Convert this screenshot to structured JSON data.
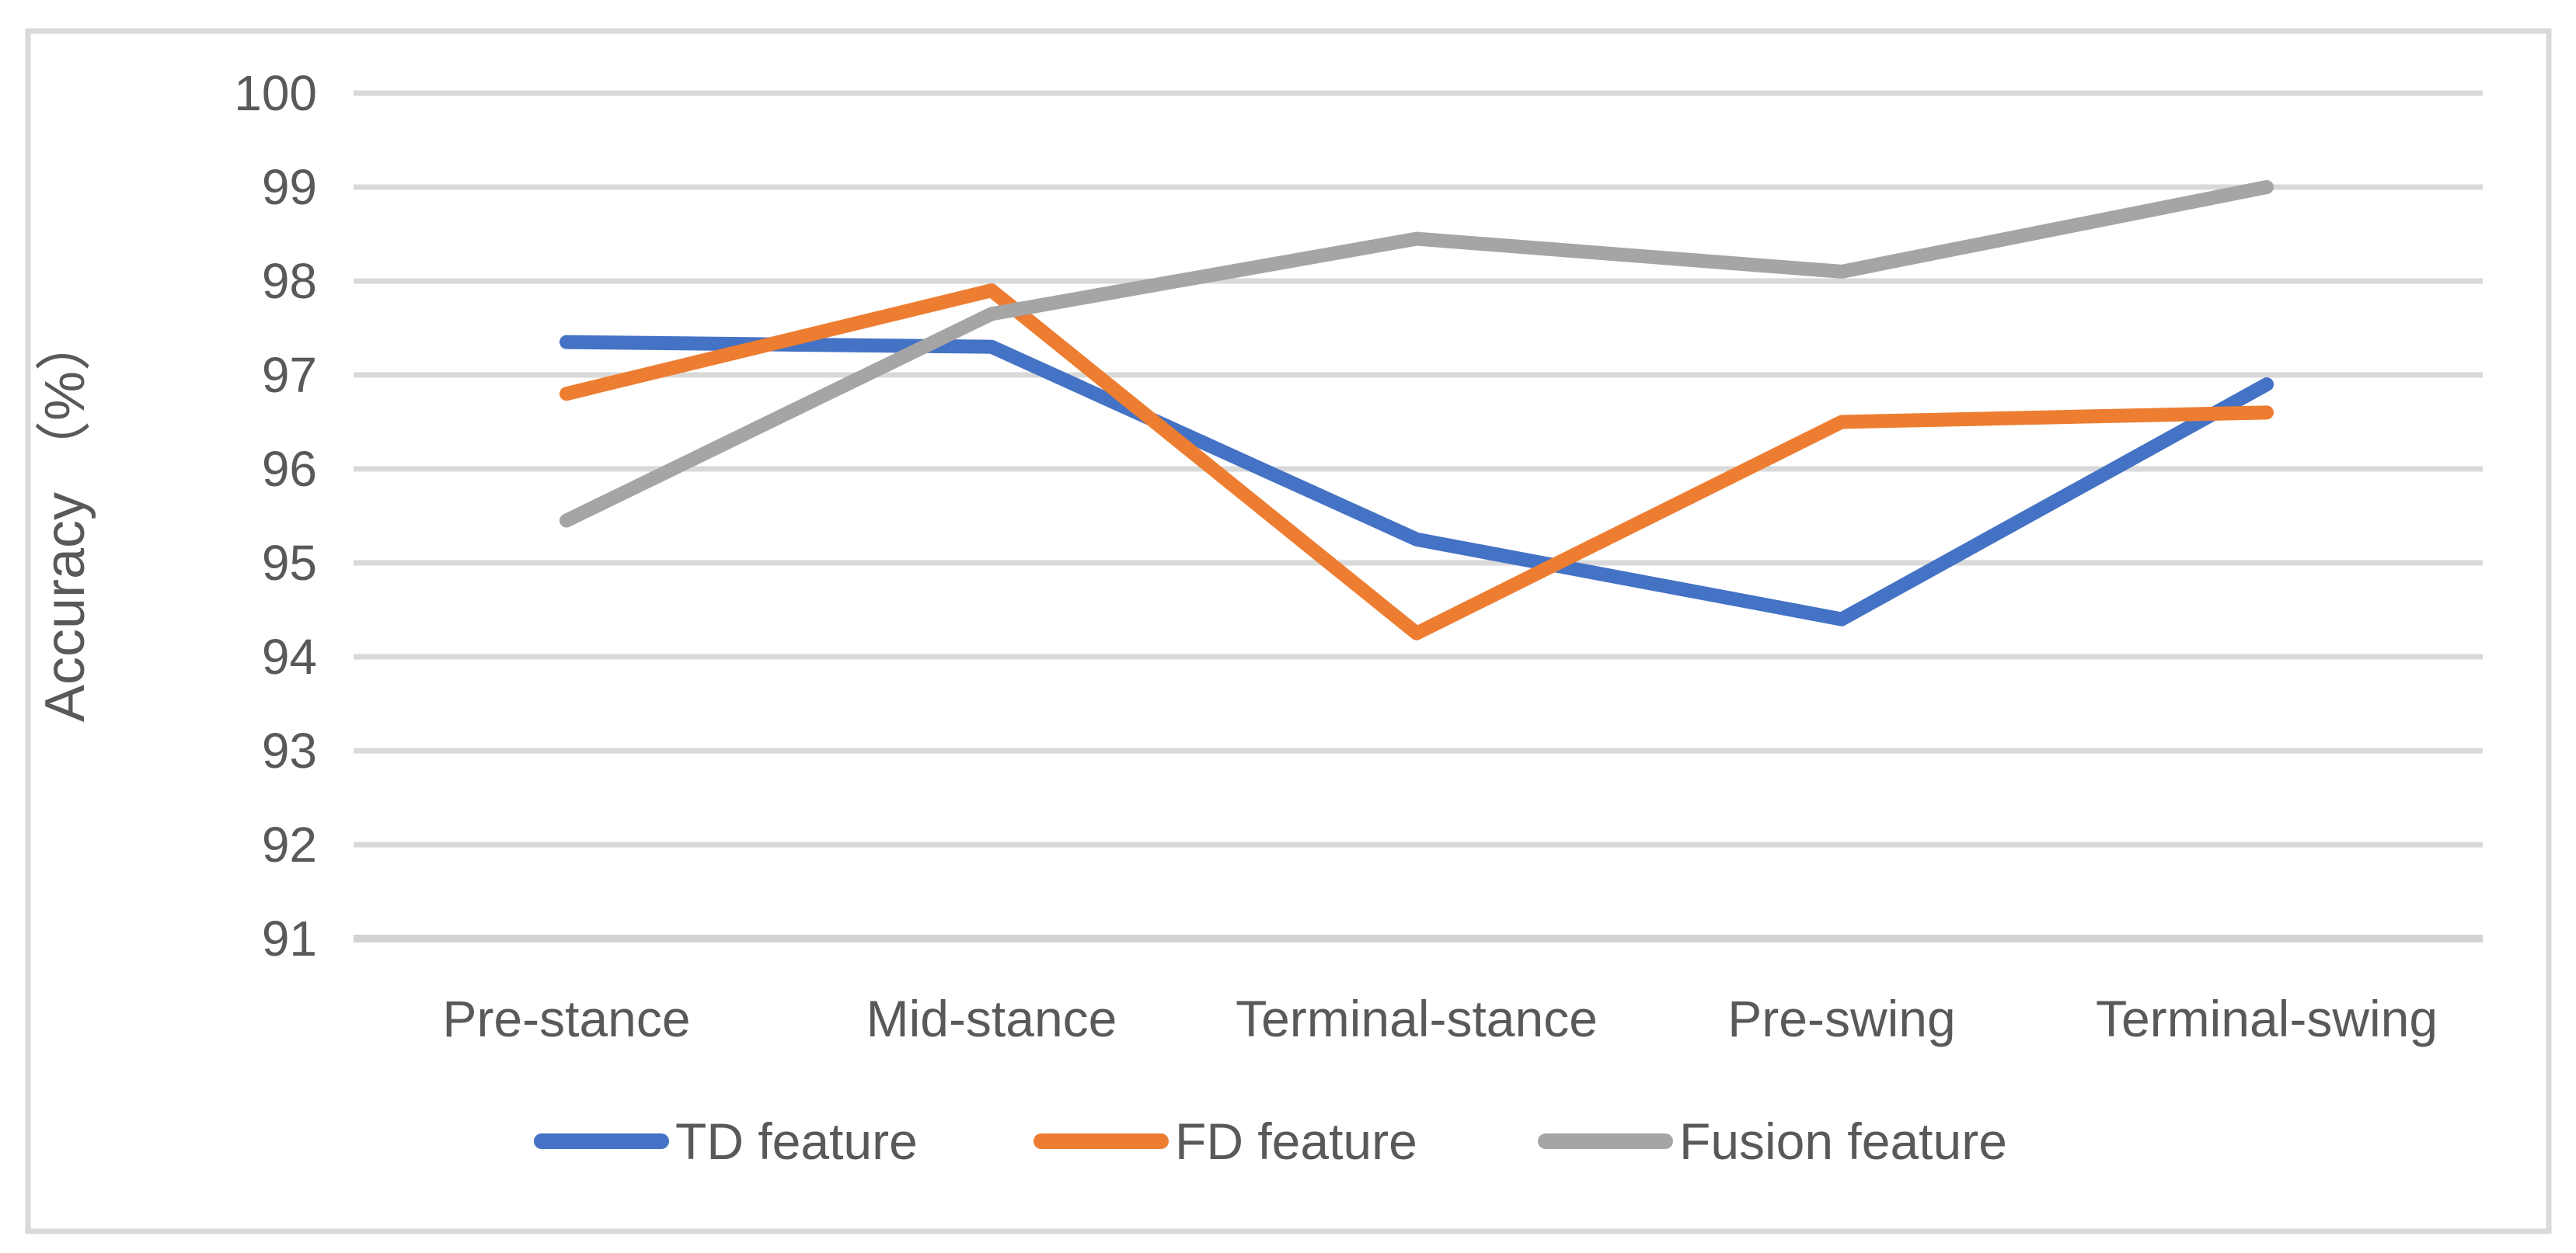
{
  "chart_data": {
    "type": "line",
    "title": "",
    "xlabel": "",
    "ylabel": "Accuracy （%）",
    "ylim": [
      91,
      100
    ],
    "yticks": [
      100,
      99,
      98,
      97,
      96,
      95,
      94,
      93,
      92,
      91
    ],
    "grid": true,
    "legend_position": "bottom",
    "categories": [
      "Pre-stance",
      "Mid-stance",
      "Terminal-stance",
      "Pre-swing",
      "Terminal-swing"
    ],
    "series": [
      {
        "name": "TD feature",
        "color": "#4472C4",
        "values": [
          97.35,
          97.3,
          95.25,
          94.4,
          96.9
        ]
      },
      {
        "name": "FD feature",
        "color": "#ED7D31",
        "values": [
          96.8,
          97.9,
          94.25,
          96.5,
          96.6
        ]
      },
      {
        "name": "Fusion feature",
        "color": "#A5A5A5",
        "values": [
          95.45,
          97.65,
          98.45,
          98.1,
          99.0
        ]
      }
    ]
  },
  "colors": {
    "gridline": "#D9D9D9",
    "axis_line": "#D3D3D3",
    "text": "#595959",
    "border": "#D9D9D9",
    "background": "#FFFFFF"
  }
}
